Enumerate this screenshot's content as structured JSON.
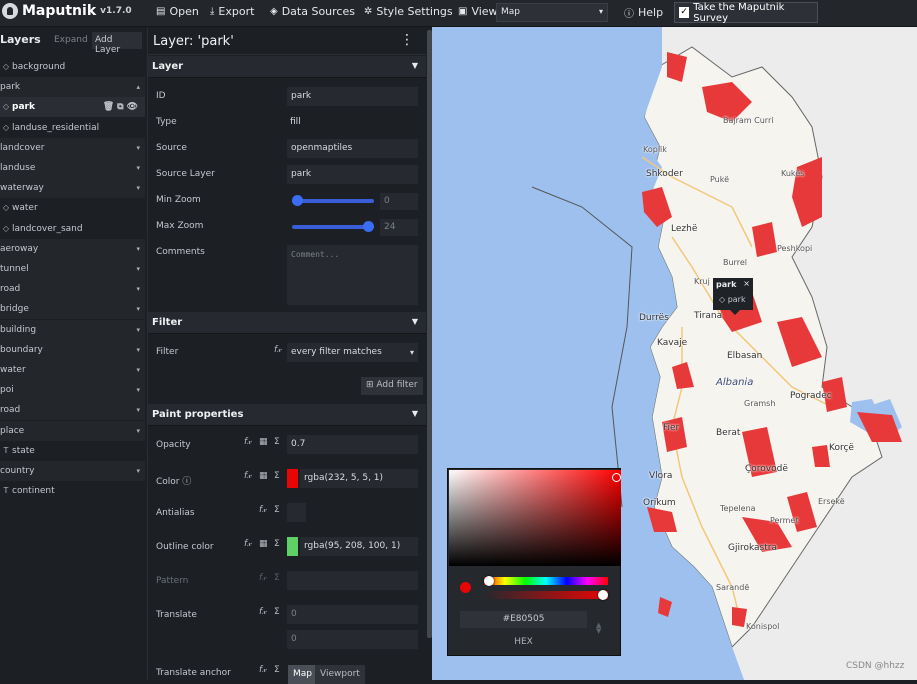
{
  "app": {
    "name": "Maputnik",
    "version": "v1.7.0"
  },
  "toolbar": {
    "open": "Open",
    "export": "Export",
    "data_sources": "Data Sources",
    "style_settings": "Style Settings",
    "view_label": "View",
    "view_value": "Map",
    "help": "Help",
    "survey": "Take the Maputnik Survey"
  },
  "layers_panel": {
    "title": "Layers",
    "expand": "Expand",
    "add_layer": "Add Layer",
    "items": [
      {
        "label": "background",
        "kind": "layer"
      },
      {
        "label": "park",
        "kind": "group"
      },
      {
        "label": "park",
        "kind": "layer",
        "selected": true
      },
      {
        "label": "landuse_residential",
        "kind": "layer"
      },
      {
        "label": "landcover",
        "kind": "group"
      },
      {
        "label": "landuse",
        "kind": "group"
      },
      {
        "label": "waterway",
        "kind": "group"
      },
      {
        "label": "water",
        "kind": "layer"
      },
      {
        "label": "landcover_sand",
        "kind": "layer"
      },
      {
        "label": "aeroway",
        "kind": "group"
      },
      {
        "label": "tunnel",
        "kind": "group"
      },
      {
        "label": "road",
        "kind": "group"
      },
      {
        "label": "bridge",
        "kind": "group"
      },
      {
        "label": "building",
        "kind": "group"
      },
      {
        "label": "boundary",
        "kind": "group"
      },
      {
        "label": "water",
        "kind": "group"
      },
      {
        "label": "poi",
        "kind": "group"
      },
      {
        "label": "road",
        "kind": "group"
      },
      {
        "label": "place",
        "kind": "group"
      },
      {
        "label": "state",
        "kind": "symbol"
      },
      {
        "label": "country",
        "kind": "group"
      },
      {
        "label": "continent",
        "kind": "symbol"
      }
    ]
  },
  "editor": {
    "title": "Layer: 'park'",
    "layer_section": "Layer",
    "labels": {
      "id": "ID",
      "type": "Type",
      "source": "Source",
      "source_layer": "Source Layer",
      "min_zoom": "Min Zoom",
      "max_zoom": "Max Zoom",
      "comments": "Comments"
    },
    "values": {
      "id": "park",
      "type": "fill",
      "source": "openmaptiles",
      "source_layer": "park",
      "min_zoom": "0",
      "max_zoom": "24",
      "comments_placeholder": "Comment..."
    },
    "zoom_levels": {
      "min": 0,
      "max": 24,
      "range": [
        0,
        24
      ]
    },
    "filter_section": "Filter",
    "filter_label": "Filter",
    "filter_value": "every filter matches",
    "add_filter": "Add filter",
    "paint_section": "Paint properties",
    "paint": {
      "opacity_label": "Opacity",
      "opacity_value": "0.7",
      "color_label": "Color",
      "color_value": "rgba(232, 5, 5, 1)",
      "color_hex": "#e80505",
      "antialias_label": "Antialias",
      "outline_label": "Outline color",
      "outline_value": "rgba(95, 208, 100, 1)",
      "outline_hex": "#5fd064",
      "pattern_label": "Pattern",
      "translate_label": "Translate",
      "translate_x": "0",
      "translate_y": "0",
      "translate_anchor_label": "Translate anchor",
      "anchor_map": "Map",
      "anchor_viewport": "Viewport"
    }
  },
  "map": {
    "country_label": "Albania",
    "places": [
      {
        "name": "Bajram Curri",
        "class": "small"
      },
      {
        "name": "Koplik",
        "class": "small"
      },
      {
        "name": "Shkoder",
        "class": ""
      },
      {
        "name": "Pukë",
        "class": "small"
      },
      {
        "name": "Kukës",
        "class": "small"
      },
      {
        "name": "Lezhë",
        "class": ""
      },
      {
        "name": "Peshkopi",
        "class": "small"
      },
      {
        "name": "Burrel",
        "class": "small"
      },
      {
        "name": "Kruj",
        "class": "small"
      },
      {
        "name": "Durrës",
        "class": ""
      },
      {
        "name": "Tirana",
        "class": ""
      },
      {
        "name": "Kavaje",
        "class": ""
      },
      {
        "name": "Elbasan",
        "class": ""
      },
      {
        "name": "Gramsh",
        "class": "small"
      },
      {
        "name": "Pogradec",
        "class": ""
      },
      {
        "name": "Fier",
        "class": ""
      },
      {
        "name": "Berat",
        "class": ""
      },
      {
        "name": "Korçë",
        "class": ""
      },
      {
        "name": "Vlora",
        "class": ""
      },
      {
        "name": "Çorovodë",
        "class": ""
      },
      {
        "name": "Orikum",
        "class": ""
      },
      {
        "name": "Tepelena",
        "class": "small"
      },
      {
        "name": "Ersekë",
        "class": "small"
      },
      {
        "name": "Permet",
        "class": "small"
      },
      {
        "name": "Gjirokastra",
        "class": ""
      },
      {
        "name": "Sarandë",
        "class": "small"
      },
      {
        "name": "Konispol",
        "class": "small"
      }
    ],
    "popup": {
      "title": "park",
      "layer": "park",
      "close": "×"
    }
  },
  "color_picker": {
    "hex_value": "#E80505",
    "hex_label": "HEX",
    "hue_position": 0.0,
    "alpha_value": 1.0
  },
  "watermark": "CSDN @hhzz"
}
